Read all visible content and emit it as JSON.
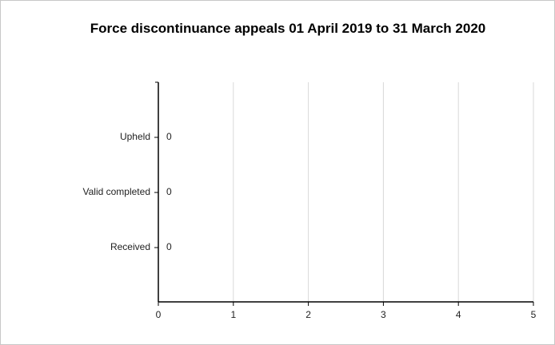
{
  "chart_data": {
    "type": "bar",
    "orientation": "horizontal",
    "title": "Force discontinuance appeals 01 April 2019 to 31 March 2020",
    "categories": [
      "Upheld",
      "Valid completed",
      "Received"
    ],
    "values": [
      0,
      0,
      0
    ],
    "color": "#4472c4",
    "xlim": [
      0,
      5
    ],
    "xticks": [
      0,
      1,
      2,
      3,
      4,
      5
    ],
    "grid": true
  }
}
